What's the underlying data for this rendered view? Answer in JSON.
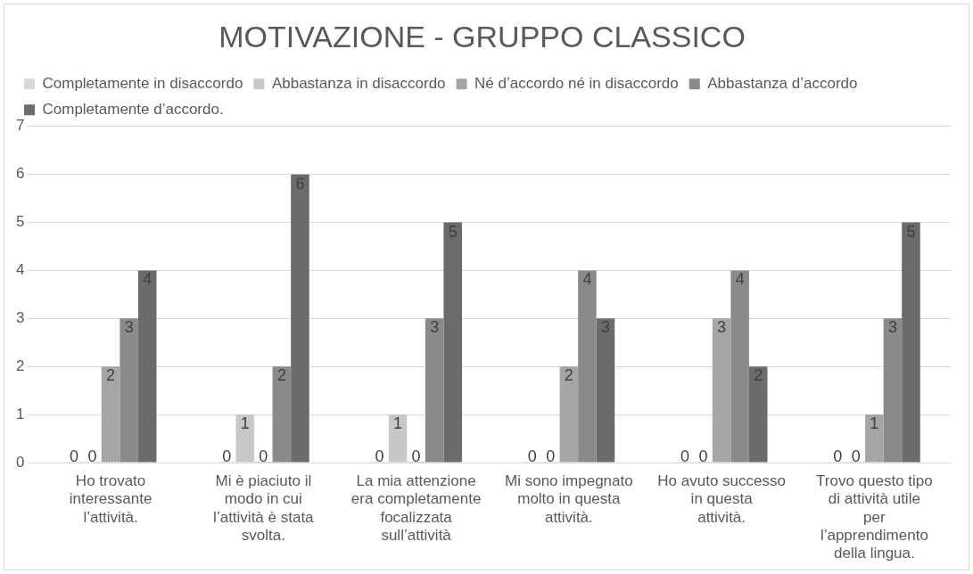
{
  "chart_data": {
    "type": "bar",
    "title": "MOTIVAZIONE - GRUPPO CLASSICO",
    "categories": [
      "Ho trovato interessante l’attività.",
      "Mi è piaciuto il modo in cui l’attività è stata svolta.",
      "La mia attenzione era completamente focalizzata sull’attività",
      "Mi sono impegnato molto in questa attività.",
      "Ho avuto successo in questa attività.",
      "Trovo questo tipo di attività utile per l’apprendimento della lingua."
    ],
    "series": [
      {
        "name": "Completamente in disaccordo",
        "color": "#d9d9d9",
        "values": [
          0,
          0,
          0,
          0,
          0,
          0
        ]
      },
      {
        "name": "Abbastanza in disaccordo",
        "color": "#c8c8c8",
        "values": [
          0,
          1,
          1,
          0,
          0,
          0
        ]
      },
      {
        "name": "Né d’accordo né in disaccordo",
        "color": "#a5a5a5",
        "values": [
          2,
          0,
          0,
          2,
          3,
          1
        ]
      },
      {
        "name": "Abbastanza d’accordo",
        "color": "#8a8a8a",
        "values": [
          3,
          2,
          3,
          4,
          4,
          3
        ]
      },
      {
        "name": "Completamente d’accordo.",
        "color": "#6b6b6b",
        "values": [
          4,
          6,
          5,
          3,
          2,
          5
        ]
      }
    ],
    "ylim": [
      0,
      7
    ],
    "yticks": [
      0,
      1,
      2,
      3,
      4,
      5,
      6,
      7
    ],
    "grid": "y",
    "legend": "top",
    "data_labels": true
  }
}
